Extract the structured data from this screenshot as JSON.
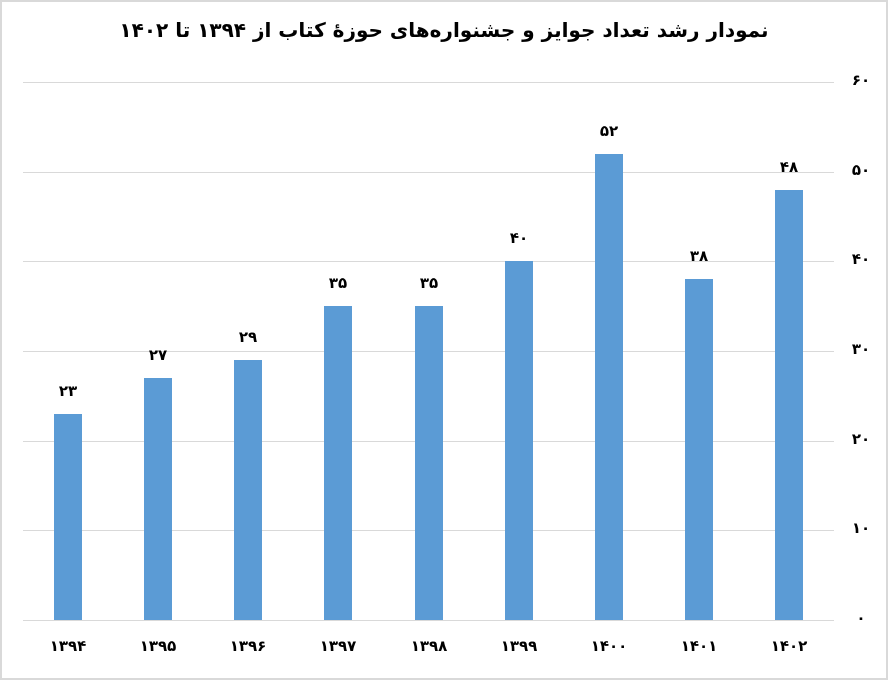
{
  "chart_data": {
    "type": "bar",
    "title": "نمودار رشد تعداد جوایز و جشنواره‌های حوزهٔ کتاب از ۱۳۹۴ تا ۱۴۰۲",
    "categories": [
      "۱۳۹۴",
      "۱۳۹۵",
      "۱۳۹۶",
      "۱۳۹۷",
      "۱۳۹۸",
      "۱۳۹۹",
      "۱۴۰۰",
      "۱۴۰۱",
      "۱۴۰۲"
    ],
    "values": [
      23,
      27,
      29,
      35,
      35,
      40,
      52,
      38,
      48
    ],
    "value_labels": [
      "۲۳",
      "۲۷",
      "۲۹",
      "۳۵",
      "۳۵",
      "۴۰",
      "۵۲",
      "۳۸",
      "۴۸"
    ],
    "xlabel": "",
    "ylabel": "",
    "ylim": [
      0,
      60
    ],
    "yticks": [
      0,
      10,
      20,
      30,
      40,
      50,
      60
    ],
    "ytick_labels": [
      "۰",
      "۱۰",
      "۲۰",
      "۳۰",
      "۴۰",
      "۵۰",
      "۶۰"
    ],
    "y_axis_position": "right",
    "grid": true,
    "legend": "none",
    "bar_color": "#5b9bd5",
    "grid_color": "#d9d9d9"
  }
}
